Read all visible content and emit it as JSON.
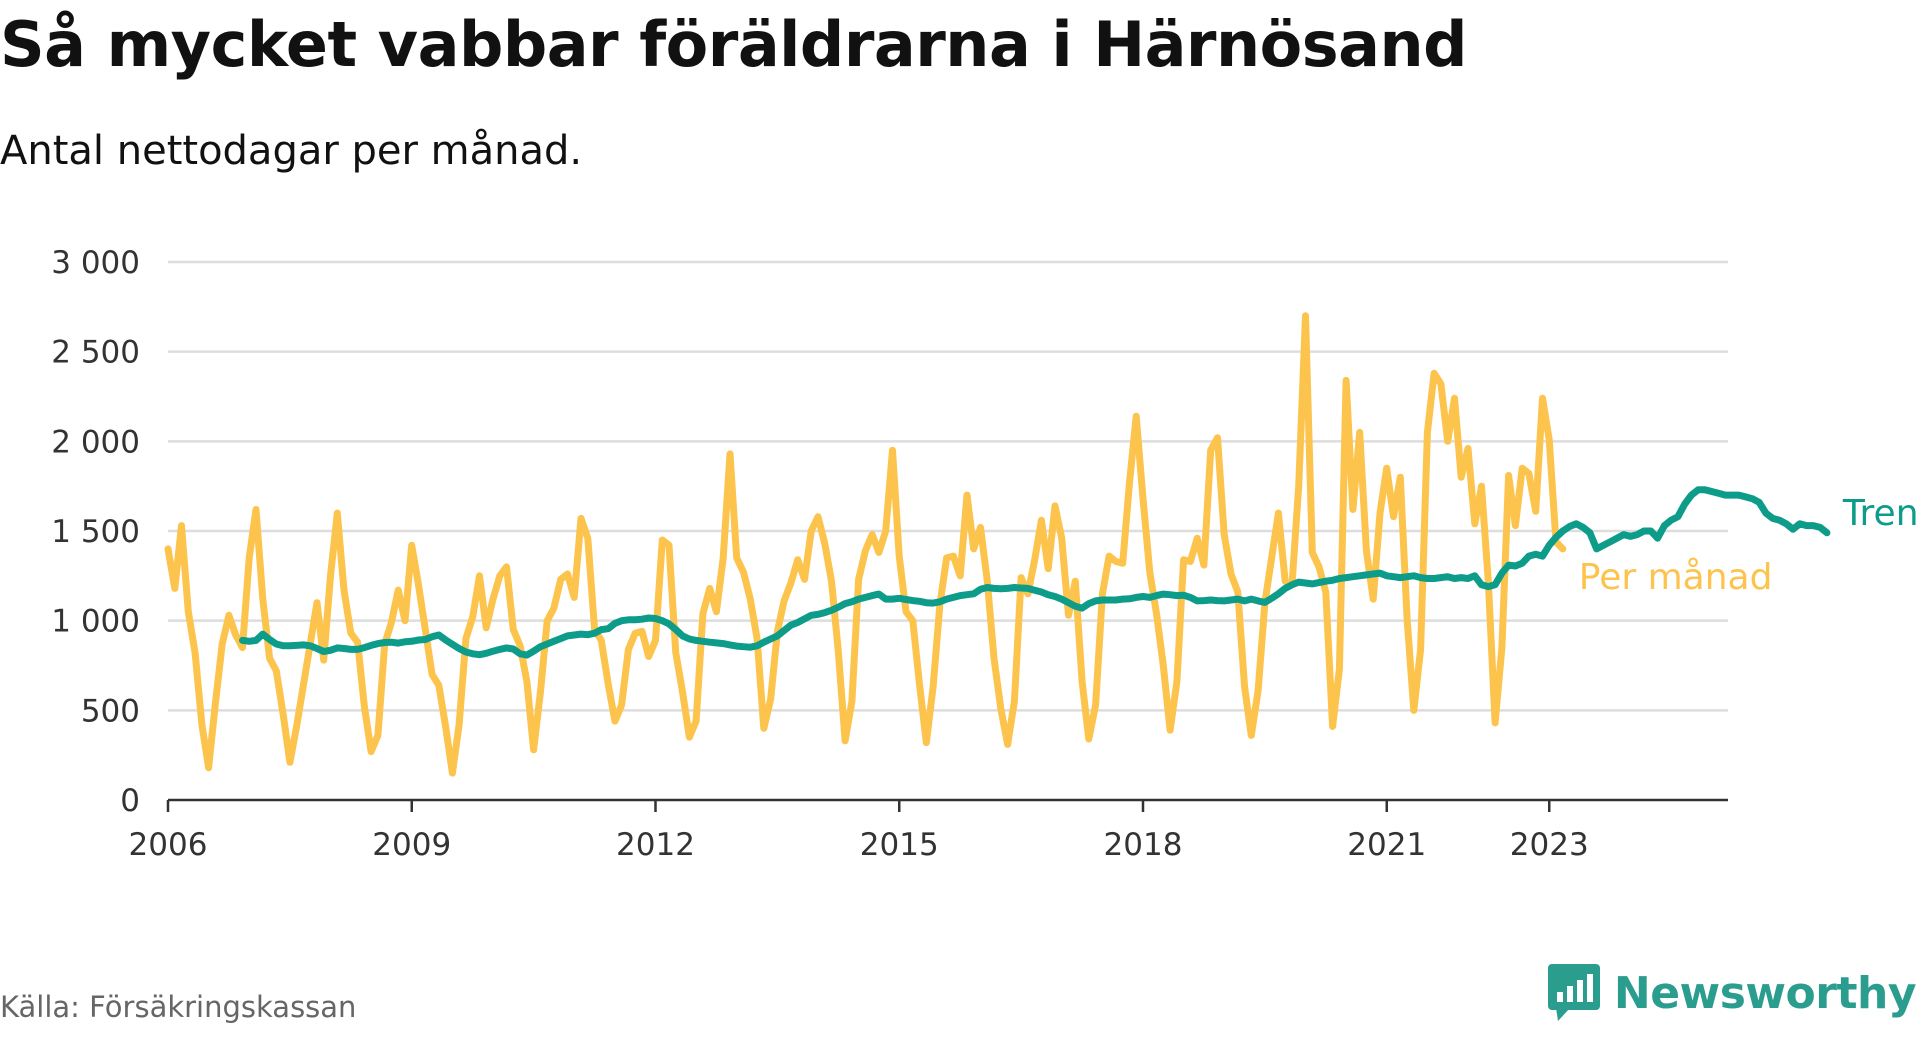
{
  "header": {
    "title": "Så mycket vabbar föräldrarna i Härnösand",
    "subtitle": "Antal nettodagar per månad."
  },
  "footer": {
    "source": "Källa: Försäkringskassan",
    "brand": "Newsworthy"
  },
  "colors": {
    "per_month": "#fcc44d",
    "trend": "#0e9c8a",
    "grid": "#dddddd",
    "axis": "#333333",
    "tick_text": "#333333",
    "brand": "#2a9d8f"
  },
  "icons": {
    "brand_logo": "newsworthy-chat-bar-icon"
  },
  "chart_data": {
    "type": "line",
    "title": "Så mycket vabbar föräldrarna i Härnösand",
    "subtitle": "Antal nettodagar per månad.",
    "xlabel": "",
    "ylabel": "",
    "x_start": "2006-01",
    "x_frequency": "monthly",
    "xlim": [
      2006.0,
      2025.2
    ],
    "ylim": [
      0,
      3000
    ],
    "yticks": [
      0,
      500,
      1000,
      1500,
      2000,
      2500,
      3000
    ],
    "ytick_labels": [
      "0",
      "500",
      "1 000",
      "1 500",
      "2 000",
      "2 500",
      "3 000"
    ],
    "xticks": [
      2006,
      2009,
      2012,
      2015,
      2018,
      2021,
      2023
    ],
    "xtick_labels": [
      "2006",
      "2009",
      "2012",
      "2015",
      "2018",
      "2021",
      "2023"
    ],
    "grid": "horizontal",
    "legend": "direct labels at line ends (right)",
    "series": [
      {
        "name": "Per månad",
        "start": "2006-01",
        "values": [
          1400,
          1180,
          1530,
          1050,
          820,
          420,
          180,
          540,
          870,
          1030,
          920,
          850,
          1350,
          1620,
          1120,
          790,
          720,
          480,
          210,
          410,
          640,
          870,
          1100,
          780,
          1250,
          1600,
          1170,
          930,
          880,
          520,
          270,
          360,
          870,
          990,
          1170,
          1000,
          1420,
          1200,
          950,
          700,
          640,
          410,
          150,
          420,
          900,
          1020,
          1250,
          960,
          1120,
          1250,
          1300,
          950,
          860,
          660,
          280,
          600,
          1000,
          1070,
          1230,
          1260,
          1130,
          1570,
          1460,
          950,
          890,
          650,
          440,
          530,
          840,
          930,
          940,
          800,
          890,
          1450,
          1420,
          820,
          600,
          350,
          440,
          1040,
          1180,
          1050,
          1350,
          1930,
          1350,
          1270,
          1120,
          900,
          400,
          560,
          940,
          1110,
          1210,
          1340,
          1230,
          1500,
          1580,
          1430,
          1220,
          830,
          330,
          550,
          1230,
          1390,
          1480,
          1380,
          1500,
          1950,
          1360,
          1050,
          1000,
          640,
          320,
          630,
          1090,
          1350,
          1360,
          1250,
          1700,
          1400,
          1520,
          1220,
          790,
          510,
          310,
          550,
          1240,
          1150,
          1340,
          1560,
          1290,
          1640,
          1460,
          1030,
          1220,
          660,
          340,
          530,
          1150,
          1360,
          1330,
          1320,
          1770,
          2140,
          1680,
          1270,
          1040,
          750,
          390,
          660,
          1340,
          1330,
          1460,
          1310,
          1950,
          2020,
          1480,
          1260,
          1160,
          630,
          360,
          610,
          1100,
          1350,
          1600,
          1220,
          1200,
          1750,
          2700,
          1380,
          1300,
          1160,
          410,
          730,
          2340,
          1620,
          2050,
          1390,
          1120,
          1600,
          1850,
          1580,
          1800,
          1010,
          500,
          840,
          2050,
          2380,
          2320,
          2000,
          2240,
          1800,
          1960,
          1540,
          1750,
          1220,
          430,
          850,
          1810,
          1530,
          1850,
          1820,
          1610,
          2240,
          2010,
          1440,
          1400
        ]
      },
      {
        "name": "Trend",
        "start": "2006-12",
        "values": [
          890,
          885,
          890,
          925,
          895,
          870,
          860,
          860,
          862,
          865,
          860,
          845,
          828,
          835,
          848,
          845,
          840,
          840,
          850,
          862,
          872,
          878,
          880,
          875,
          882,
          885,
          892,
          895,
          910,
          920,
          893,
          868,
          845,
          825,
          815,
          810,
          818,
          830,
          840,
          848,
          842,
          815,
          808,
          830,
          855,
          870,
          885,
          900,
          915,
          920,
          925,
          922,
          930,
          950,
          955,
          985,
          1000,
          1005,
          1005,
          1008,
          1015,
          1012,
          1000,
          982,
          950,
          915,
          898,
          890,
          885,
          880,
          876,
          872,
          865,
          858,
          855,
          852,
          860,
          880,
          898,
          915,
          945,
          975,
          990,
          1010,
          1030,
          1035,
          1045,
          1058,
          1075,
          1095,
          1105,
          1120,
          1130,
          1140,
          1148,
          1120,
          1120,
          1125,
          1118,
          1112,
          1108,
          1100,
          1098,
          1105,
          1120,
          1130,
          1140,
          1145,
          1150,
          1175,
          1185,
          1180,
          1178,
          1180,
          1185,
          1182,
          1180,
          1170,
          1160,
          1145,
          1135,
          1120,
          1100,
          1080,
          1070,
          1095,
          1110,
          1115,
          1115,
          1115,
          1120,
          1122,
          1130,
          1135,
          1130,
          1140,
          1148,
          1145,
          1140,
          1142,
          1130,
          1110,
          1112,
          1115,
          1112,
          1110,
          1115,
          1120,
          1110,
          1120,
          1110,
          1102,
          1125,
          1150,
          1180,
          1200,
          1215,
          1210,
          1205,
          1212,
          1220,
          1225,
          1235,
          1240,
          1245,
          1250,
          1255,
          1260,
          1265,
          1250,
          1245,
          1240,
          1245,
          1250,
          1240,
          1235,
          1235,
          1240,
          1245,
          1235,
          1240,
          1235,
          1250,
          1200,
          1190,
          1200,
          1265,
          1310,
          1305,
          1320,
          1360,
          1370,
          1360,
          1420,
          1465,
          1500,
          1525,
          1540,
          1520,
          1490,
          1400,
          1420,
          1440,
          1460,
          1480,
          1470,
          1480,
          1500,
          1500,
          1460,
          1530,
          1560,
          1580,
          1650,
          1700,
          1730,
          1730,
          1720,
          1710,
          1700,
          1700,
          1700,
          1690,
          1680,
          1660,
          1600,
          1570,
          1560,
          1540,
          1510,
          1540,
          1530,
          1530,
          1520,
          1490
        ]
      }
    ]
  }
}
